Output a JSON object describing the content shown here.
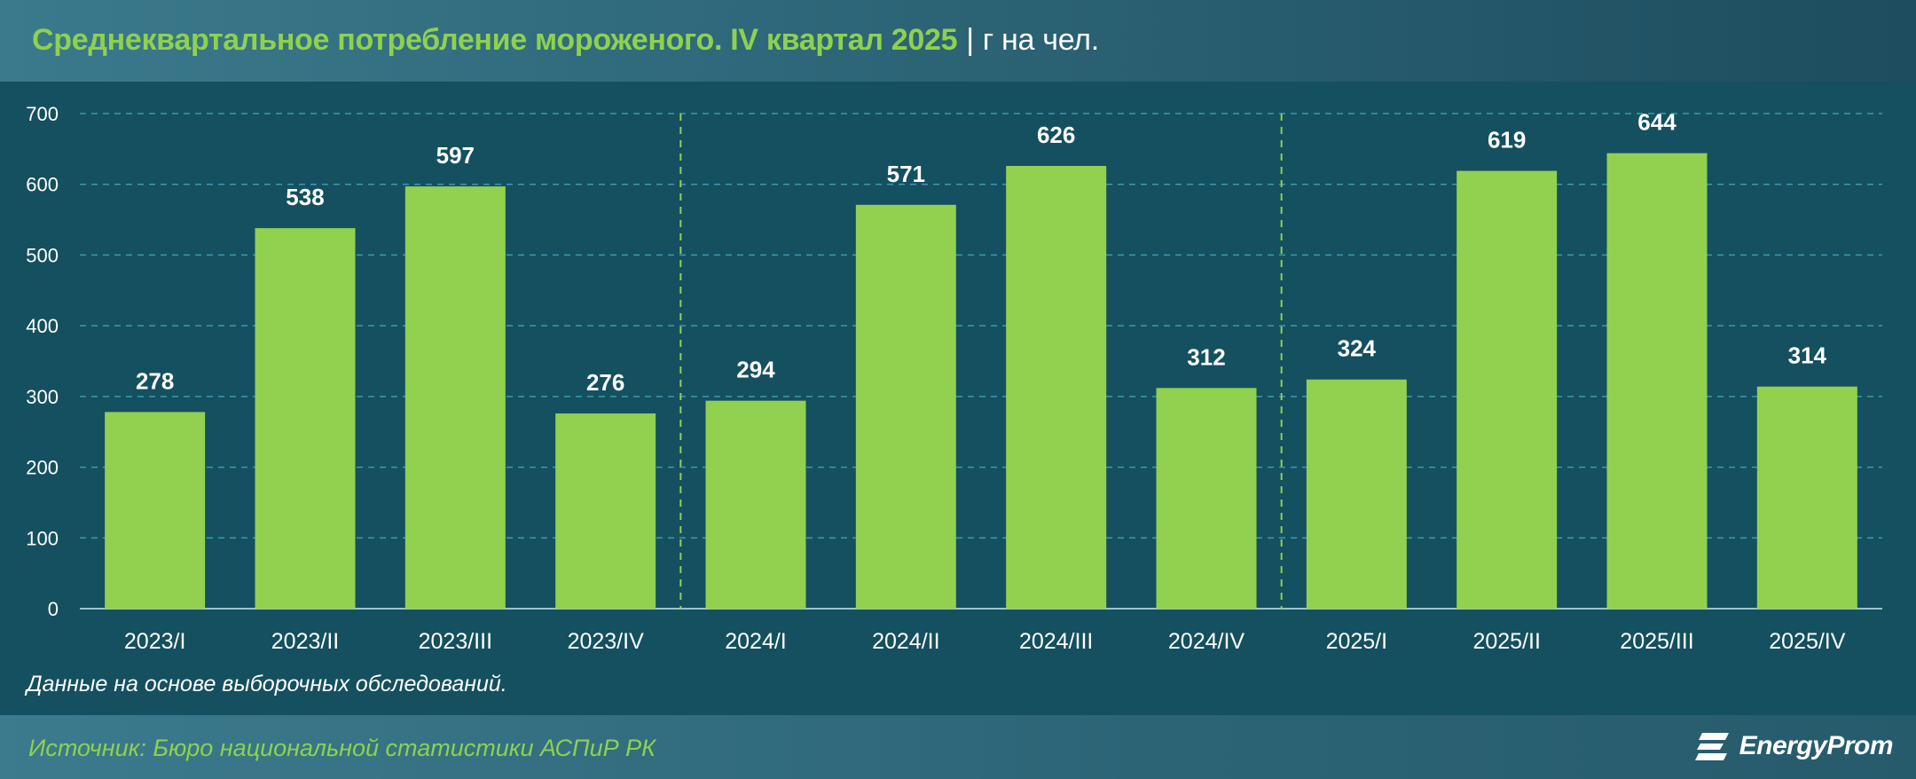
{
  "header": {
    "title": "Среднеквартальное потребление мороженого. IV квартал 2025",
    "separator": "|",
    "unit": "г на чел."
  },
  "note": "Данные на основе выборочных обследований.",
  "footer": {
    "source": "Источник: Бюро национальной статистики АСПиР РК",
    "brand": "EnergyProm"
  },
  "colors": {
    "bar": "#92d050",
    "background": "#14505f",
    "title": "#8fd14f",
    "gridline": "#3a9bb0",
    "year_divider": "#92d050"
  },
  "chart_data": {
    "type": "bar",
    "title": "Среднеквартальное потребление мороженого. IV квартал 2025",
    "ylabel": "г на чел.",
    "ylim": [
      0,
      700
    ],
    "yticks": [
      0,
      100,
      200,
      300,
      400,
      500,
      600,
      700
    ],
    "grid": true,
    "categories": [
      "2023/I",
      "2023/II",
      "2023/III",
      "2023/IV",
      "2024/I",
      "2024/II",
      "2024/III",
      "2024/IV",
      "2025/I",
      "2025/II",
      "2025/III",
      "2025/IV"
    ],
    "values": [
      278,
      538,
      597,
      276,
      294,
      571,
      626,
      312,
      324,
      619,
      644,
      314
    ],
    "year_dividers_after": [
      "2023/IV",
      "2024/IV"
    ]
  }
}
